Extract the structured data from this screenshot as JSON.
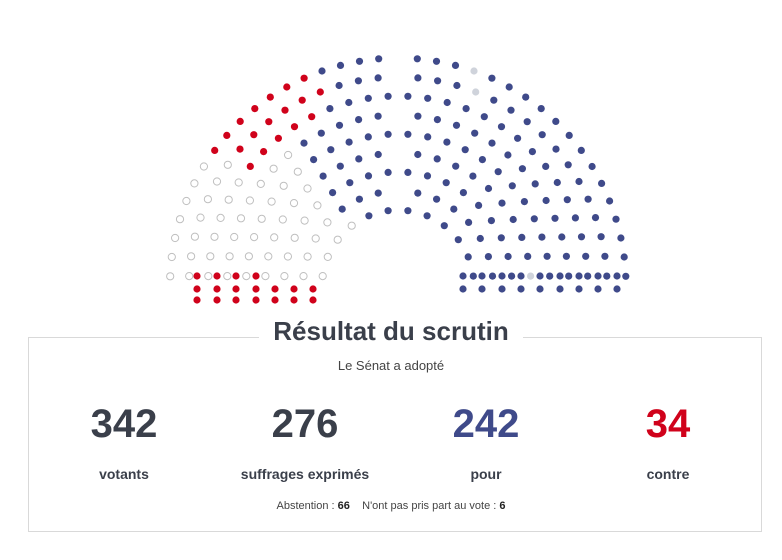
{
  "title": "Résultat du scrutin",
  "subtitle": "Le Sénat a adopté",
  "stats": {
    "votants": {
      "value": "342",
      "label": "votants",
      "color": "#3a3f4a"
    },
    "exprimes": {
      "value": "276",
      "label": "suffrages exprimés",
      "color": "#3a3f4a"
    },
    "pour": {
      "value": "242",
      "label": "pour",
      "color": "#3f4a8a"
    },
    "contre": {
      "value": "34",
      "label": "contre",
      "color": "#d0021b"
    }
  },
  "footer": {
    "abstention_label": "Abstention : ",
    "abstention_value": "66",
    "non_participants_label": "N'ont pas pris part au vote : ",
    "non_participants_value": "6"
  },
  "seat_colors": {
    "pour": "#3f4a8a",
    "contre": "#d0021b",
    "abstention": "#bfbfbf",
    "non_votant": "#cfd3db"
  }
}
